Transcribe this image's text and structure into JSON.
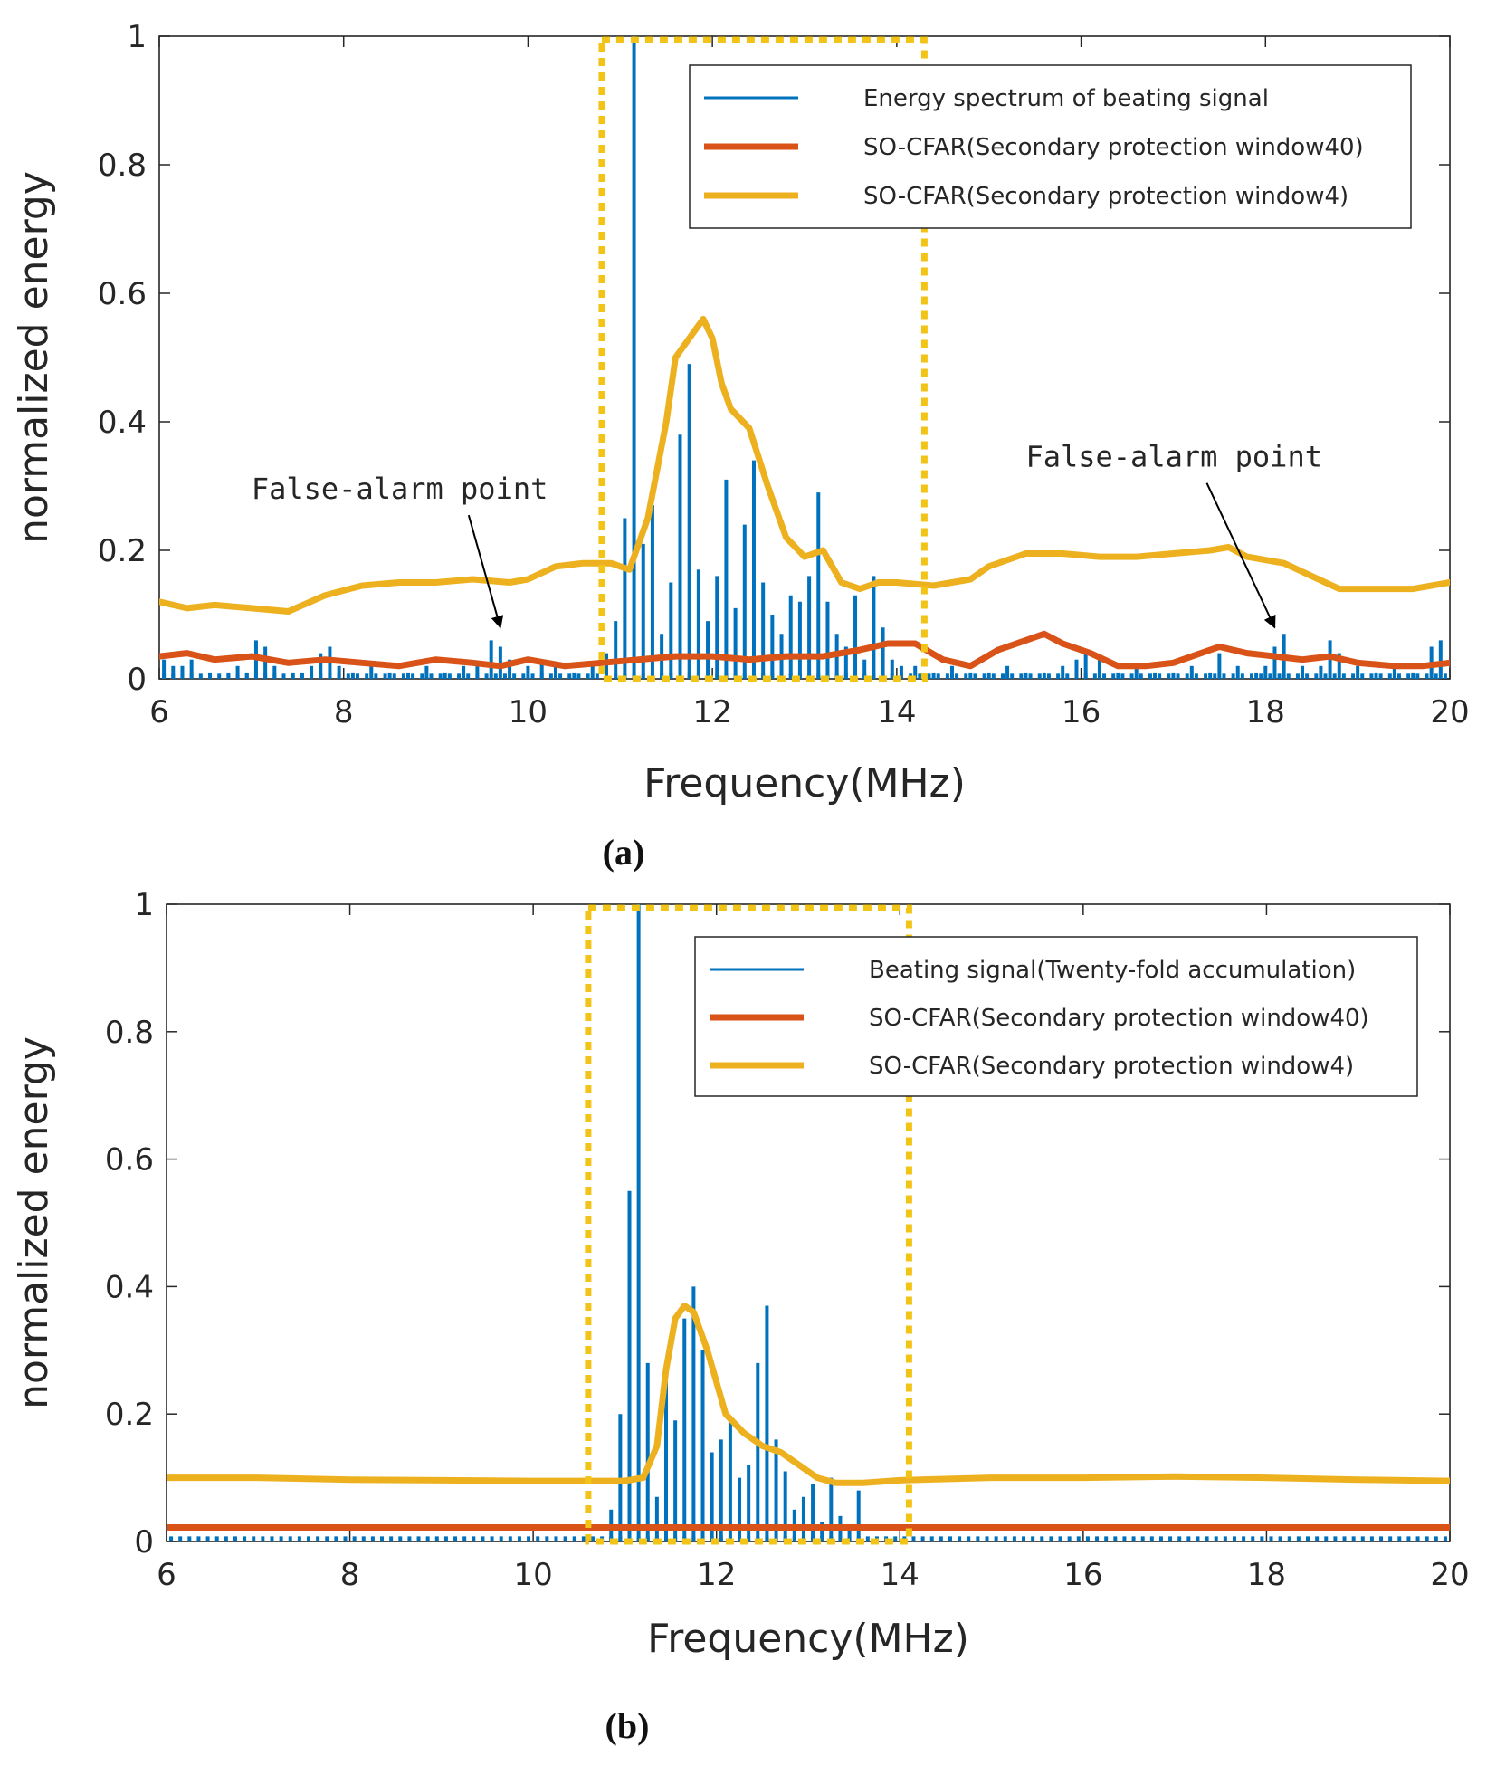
{
  "colors": {
    "spectrum": "#0072BD",
    "cfar40": "#D95319",
    "cfar4": "#EDB120",
    "window": "#F2C418",
    "axis": "#262626"
  },
  "chart_data": [
    {
      "type": "bar",
      "panel": "a",
      "caption": "(a)",
      "xlabel": "Frequency(MHz)",
      "ylabel": "normalized energy",
      "xlim": [
        6,
        20
      ],
      "ylim": [
        0,
        1
      ],
      "xticks": [
        "6",
        "8",
        "10",
        "12",
        "14",
        "16",
        "18",
        "20"
      ],
      "yticks": [
        "0",
        "0.2",
        "0.4",
        "0.6",
        "0.8",
        "1"
      ],
      "legend": [
        {
          "label": "Energy spectrum of beating signal",
          "style": "thin",
          "color_key": "spectrum"
        },
        {
          "label": "SO-CFAR(Secondary protection window40)",
          "style": "thick",
          "color_key": "cfar40"
        },
        {
          "label": "SO-CFAR(Secondary protection window4)",
          "style": "thick",
          "color_key": "cfar4"
        }
      ],
      "detection_window": {
        "x0": 10.8,
        "x1": 14.3,
        "y0": 0,
        "y1": 1
      },
      "annotations": [
        {
          "text": "False-alarm point",
          "text_x": 7.0,
          "text_y": 0.28,
          "target_x": 9.7,
          "target_y": 0.08
        },
        {
          "text": "False-alarm point",
          "text_x": 15.4,
          "text_y": 0.33,
          "target_x": 18.1,
          "target_y": 0.08
        }
      ],
      "spectrum": {
        "x": [
          6.05,
          6.15,
          6.25,
          6.35,
          6.55,
          6.75,
          6.85,
          6.95,
          7.05,
          7.15,
          7.25,
          7.45,
          7.55,
          7.65,
          7.75,
          7.85,
          7.95,
          8.1,
          8.3,
          8.5,
          8.7,
          8.9,
          9.1,
          9.3,
          9.45,
          9.6,
          9.7,
          9.8,
          10.0,
          10.15,
          10.3,
          10.5,
          10.7,
          10.85,
          10.95,
          11.05,
          11.15,
          11.25,
          11.35,
          11.45,
          11.55,
          11.65,
          11.75,
          11.85,
          11.95,
          12.05,
          12.15,
          12.25,
          12.35,
          12.45,
          12.55,
          12.65,
          12.75,
          12.85,
          12.95,
          13.05,
          13.15,
          13.25,
          13.35,
          13.45,
          13.55,
          13.65,
          13.75,
          13.85,
          13.95,
          14.05,
          14.2,
          14.4,
          14.6,
          14.8,
          15.0,
          15.2,
          15.4,
          15.6,
          15.8,
          15.95,
          16.05,
          16.2,
          16.4,
          16.6,
          16.8,
          17.0,
          17.2,
          17.4,
          17.5,
          17.7,
          17.9,
          18.0,
          18.1,
          18.2,
          18.4,
          18.6,
          18.7,
          18.8,
          19.0,
          19.2,
          19.4,
          19.6,
          19.8,
          19.9
        ],
        "y": [
          0.03,
          0.02,
          0.02,
          0.03,
          0.01,
          0.01,
          0.02,
          0.01,
          0.06,
          0.05,
          0.02,
          0.01,
          0.01,
          0.02,
          0.04,
          0.05,
          0.02,
          0.01,
          0.02,
          0.01,
          0.01,
          0.02,
          0.01,
          0.02,
          0.02,
          0.06,
          0.05,
          0.03,
          0.02,
          0.03,
          0.02,
          0.01,
          0.02,
          0.04,
          0.09,
          0.25,
          1.0,
          0.21,
          0.27,
          0.07,
          0.15,
          0.38,
          0.49,
          0.17,
          0.09,
          0.16,
          0.31,
          0.11,
          0.24,
          0.34,
          0.15,
          0.1,
          0.07,
          0.13,
          0.12,
          0.16,
          0.29,
          0.12,
          0.07,
          0.05,
          0.13,
          0.03,
          0.16,
          0.08,
          0.03,
          0.02,
          0.02,
          0.01,
          0.02,
          0.01,
          0.01,
          0.02,
          0.01,
          0.01,
          0.02,
          0.03,
          0.04,
          0.03,
          0.01,
          0.02,
          0.01,
          0.01,
          0.02,
          0.01,
          0.04,
          0.02,
          0.01,
          0.02,
          0.05,
          0.07,
          0.02,
          0.02,
          0.06,
          0.04,
          0.02,
          0.01,
          0.02,
          0.01,
          0.05,
          0.06
        ]
      },
      "series": [
        {
          "name": "SO-CFAR(Secondary protection window40)",
          "color_key": "cfar40",
          "x": [
            6.0,
            6.3,
            6.6,
            7.0,
            7.4,
            7.8,
            8.2,
            8.6,
            9.0,
            9.4,
            9.7,
            10.0,
            10.4,
            10.8,
            11.2,
            11.6,
            12.0,
            12.4,
            12.8,
            13.2,
            13.6,
            13.9,
            14.2,
            14.5,
            14.8,
            15.1,
            15.4,
            15.6,
            15.8,
            16.1,
            16.4,
            16.7,
            17.0,
            17.3,
            17.5,
            17.8,
            18.1,
            18.4,
            18.7,
            19.0,
            19.4,
            19.7,
            20.0
          ],
          "y": [
            0.035,
            0.04,
            0.03,
            0.035,
            0.025,
            0.03,
            0.025,
            0.02,
            0.03,
            0.025,
            0.02,
            0.03,
            0.02,
            0.025,
            0.03,
            0.035,
            0.035,
            0.03,
            0.035,
            0.035,
            0.045,
            0.055,
            0.055,
            0.03,
            0.02,
            0.045,
            0.06,
            0.07,
            0.055,
            0.04,
            0.02,
            0.02,
            0.025,
            0.04,
            0.05,
            0.04,
            0.035,
            0.03,
            0.035,
            0.025,
            0.02,
            0.02,
            0.025
          ]
        },
        {
          "name": "SO-CFAR(Secondary protection window4)",
          "color_key": "cfar4",
          "x": [
            6.0,
            6.3,
            6.6,
            7.0,
            7.4,
            7.8,
            8.2,
            8.6,
            9.0,
            9.4,
            9.8,
            10.0,
            10.3,
            10.6,
            10.9,
            11.1,
            11.3,
            11.5,
            11.6,
            11.7,
            11.8,
            11.9,
            12.0,
            12.1,
            12.2,
            12.4,
            12.6,
            12.8,
            13.0,
            13.2,
            13.4,
            13.6,
            13.8,
            14.0,
            14.4,
            14.8,
            15.0,
            15.4,
            15.8,
            16.2,
            16.6,
            17.0,
            17.4,
            17.6,
            17.8,
            18.2,
            18.5,
            18.8,
            19.0,
            19.3,
            19.6,
            20.0
          ],
          "y": [
            0.12,
            0.11,
            0.115,
            0.11,
            0.105,
            0.13,
            0.145,
            0.15,
            0.15,
            0.155,
            0.15,
            0.155,
            0.175,
            0.18,
            0.18,
            0.17,
            0.25,
            0.4,
            0.5,
            0.52,
            0.54,
            0.56,
            0.53,
            0.46,
            0.42,
            0.39,
            0.3,
            0.22,
            0.19,
            0.2,
            0.15,
            0.14,
            0.15,
            0.15,
            0.145,
            0.155,
            0.175,
            0.195,
            0.195,
            0.19,
            0.19,
            0.195,
            0.2,
            0.205,
            0.19,
            0.18,
            0.16,
            0.14,
            0.14,
            0.14,
            0.14,
            0.15
          ]
        }
      ]
    },
    {
      "type": "bar",
      "panel": "b",
      "caption": "(b)",
      "xlabel": "Frequency(MHz)",
      "ylabel": "normalized energy",
      "xlim": [
        6,
        20
      ],
      "ylim": [
        0,
        1
      ],
      "xticks": [
        "6",
        "8",
        "10",
        "12",
        "14",
        "16",
        "18",
        "20"
      ],
      "yticks": [
        "0",
        "0.2",
        "0.4",
        "0.6",
        "0.8",
        "1"
      ],
      "legend": [
        {
          "label": "Beating signal(Twenty-fold accumulation)",
          "style": "thin",
          "color_key": "spectrum"
        },
        {
          "label": "SO-CFAR(Secondary protection window40)",
          "style": "thick",
          "color_key": "cfar40"
        },
        {
          "label": "SO-CFAR(Secondary protection window4)",
          "style": "thick",
          "color_key": "cfar4"
        }
      ],
      "detection_window": {
        "x0": 10.6,
        "x1": 14.1,
        "y0": 0,
        "y1": 1
      },
      "annotations": [],
      "spectrum": {
        "x": [
          10.85,
          10.95,
          11.05,
          11.15,
          11.25,
          11.35,
          11.45,
          11.55,
          11.65,
          11.75,
          11.85,
          11.95,
          12.05,
          12.15,
          12.25,
          12.35,
          12.45,
          12.55,
          12.65,
          12.75,
          12.85,
          12.95,
          13.05,
          13.15,
          13.25,
          13.35,
          13.45,
          13.55
        ],
        "y": [
          0.05,
          0.2,
          0.55,
          1.0,
          0.28,
          0.07,
          0.28,
          0.19,
          0.35,
          0.4,
          0.3,
          0.14,
          0.16,
          0.19,
          0.1,
          0.12,
          0.28,
          0.37,
          0.16,
          0.11,
          0.05,
          0.07,
          0.09,
          0.03,
          0.1,
          0.04,
          0.02,
          0.08
        ]
      },
      "series": [
        {
          "name": "SO-CFAR(Secondary protection window40)",
          "color_key": "cfar40",
          "x": [
            6.0,
            8.0,
            10.0,
            12.0,
            14.0,
            16.0,
            18.0,
            20.0
          ],
          "y": [
            0.022,
            0.022,
            0.022,
            0.022,
            0.022,
            0.022,
            0.022,
            0.022
          ]
        },
        {
          "name": "SO-CFAR(Secondary protection window4)",
          "color_key": "cfar4",
          "x": [
            6.0,
            7.0,
            8.0,
            9.0,
            10.0,
            10.5,
            11.0,
            11.2,
            11.35,
            11.45,
            11.55,
            11.65,
            11.75,
            11.9,
            12.1,
            12.3,
            12.5,
            12.7,
            12.9,
            13.1,
            13.3,
            13.6,
            14.0,
            15.0,
            16.0,
            17.0,
            18.0,
            19.0,
            20.0
          ],
          "y": [
            0.1,
            0.1,
            0.097,
            0.096,
            0.095,
            0.095,
            0.095,
            0.1,
            0.15,
            0.27,
            0.35,
            0.37,
            0.36,
            0.3,
            0.2,
            0.17,
            0.15,
            0.14,
            0.12,
            0.1,
            0.092,
            0.092,
            0.096,
            0.1,
            0.1,
            0.102,
            0.1,
            0.097,
            0.095
          ]
        }
      ]
    }
  ]
}
